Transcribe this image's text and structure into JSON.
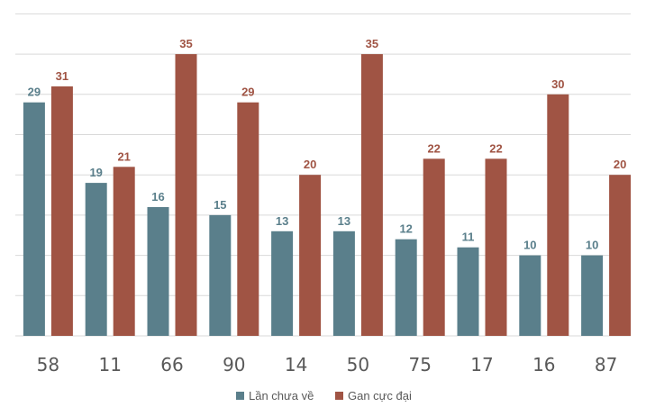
{
  "chart_data": {
    "type": "bar",
    "title": "",
    "xlabel": "",
    "ylabel": "",
    "ylim": [
      0,
      35
    ],
    "grid": true,
    "legend_position": "bottom",
    "categories": [
      "58",
      "11",
      "66",
      "90",
      "14",
      "50",
      "75",
      "17",
      "16",
      "87"
    ],
    "series": [
      {
        "name": "Lần chưa về",
        "color": "#5a7f8b",
        "values": [
          29,
          19,
          16,
          15,
          13,
          13,
          12,
          11,
          10,
          10
        ]
      },
      {
        "name": "Gan cực đại",
        "color": "#a05444",
        "values": [
          31,
          21,
          35,
          29,
          20,
          35,
          22,
          22,
          30,
          20
        ]
      }
    ]
  }
}
